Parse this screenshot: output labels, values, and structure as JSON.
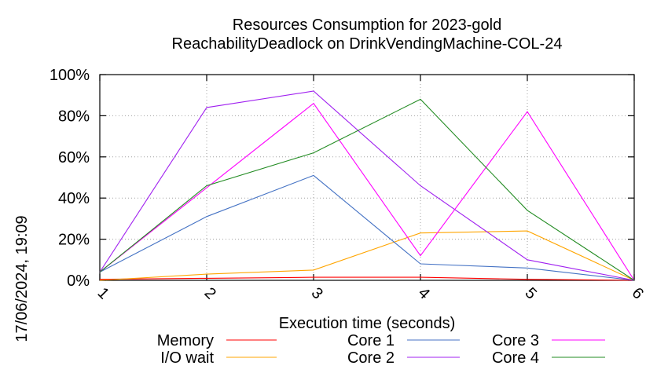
{
  "chart_data": {
    "type": "line",
    "title": "Resources Consumption for 2023-gold",
    "subtitle": "ReachabilityDeadlock on DrinkVendingMachine-COL-24",
    "xlabel": "Execution time (seconds)",
    "ylabel": "",
    "side_label": "17/06/2024, 19:09",
    "x": [
      1,
      2,
      3,
      4,
      5,
      6
    ],
    "x_tick_labels": [
      "1",
      "2",
      "3",
      "4",
      "5",
      "6"
    ],
    "xlim": [
      1,
      6
    ],
    "ylim": [
      0,
      100
    ],
    "y_ticks": [
      0,
      20,
      40,
      60,
      80,
      100
    ],
    "y_tick_labels": [
      "0%",
      "20%",
      "40%",
      "60%",
      "80%",
      "100%"
    ],
    "grid": true,
    "legend_placement": "bottom",
    "series": [
      {
        "name": "Memory",
        "color": "#ff0000",
        "values": [
          0.5,
          1,
          1.5,
          1.5,
          0.5,
          0
        ]
      },
      {
        "name": "I/O wait",
        "color": "#ffa500",
        "values": [
          0,
          3,
          5,
          23,
          24,
          0
        ]
      },
      {
        "name": "Core 1",
        "color": "#4472c4",
        "values": [
          4,
          31,
          51,
          8,
          6,
          0
        ]
      },
      {
        "name": "Core 2",
        "color": "#a020f0",
        "values": [
          4,
          84,
          92,
          46,
          10,
          0
        ]
      },
      {
        "name": "Core 3",
        "color": "#ff00ff",
        "values": [
          4,
          45,
          86,
          12,
          82,
          0
        ]
      },
      {
        "name": "Core 4",
        "color": "#228b22",
        "values": [
          4,
          46,
          62,
          88,
          34,
          0
        ]
      }
    ]
  }
}
